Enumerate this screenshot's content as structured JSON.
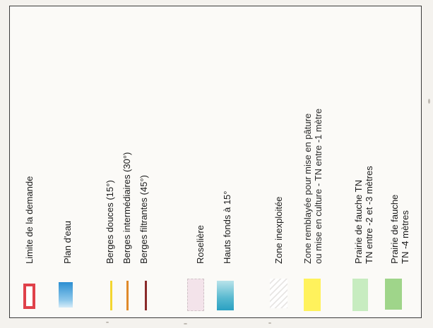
{
  "legend": {
    "items": [
      {
        "label": "Limite de la demande",
        "symbol": "red-outline-rectangle",
        "color": "#e0414a"
      },
      {
        "label": "Plan d'eau",
        "symbol": "water-gradient",
        "color": "#2c8fd2"
      },
      {
        "label": "Berges douces (15°)",
        "symbol": "yellow-line",
        "color": "#f3d630"
      },
      {
        "label": "Berges intermédiaires (30°)",
        "symbol": "orange-line",
        "color": "#e08a2a"
      },
      {
        "label": "Berges filtrantes (45°)",
        "symbol": "brown-line",
        "color": "#8a2a2a"
      },
      {
        "label": "Roselière",
        "symbol": "pink-fill",
        "color": "#f3e3ea"
      },
      {
        "label": "Hauts fonds à 15°",
        "symbol": "teal-gradient",
        "color": "#2aa0c2"
      },
      {
        "label": "Zone inexploitée",
        "symbol": "hatched-fill",
        "color": "#e8e6e4"
      },
      {
        "label": "Zone remblayée pour mise en pâture\nou mise en culture - TN entre -1 mètre",
        "symbol": "yellow-fill",
        "color": "#fff25c"
      },
      {
        "label": "Prairie de fauche TN\nTN entre -2 et -3 mètres",
        "symbol": "light-green-fill",
        "color": "#c7ecc0"
      },
      {
        "label": "Prairie de fauche\nTN -4 mètres",
        "symbol": "green-fill",
        "color": "#9fd58a"
      }
    ]
  }
}
